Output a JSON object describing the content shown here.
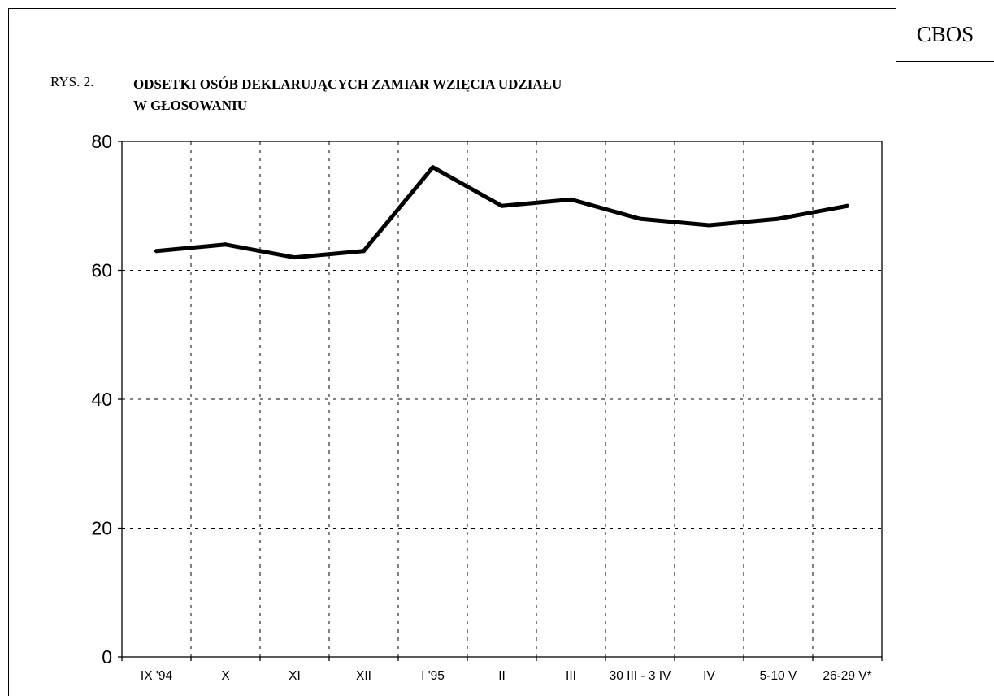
{
  "header": {
    "brand": "CBOS",
    "figure_label": "RYS. 2.",
    "title_lines": [
      "ODSETKI OSÓB DEKLARUJĄCYCH ZAMIAR WZIĘCIA UDZIAŁU",
      "W GŁOSOWANIU"
    ]
  },
  "chart_data": {
    "type": "line",
    "title": "ODSETKI OSÓB DEKLARUJĄCYCH ZAMIAR WZIĘCIA UDZIAŁU W GŁOSOWANIU",
    "categories": [
      "IX '94",
      "X",
      "XI",
      "XII",
      "I '95",
      "II",
      "III",
      "30 III - 3 IV",
      "IV",
      "5-10 V",
      "26-29 V*"
    ],
    "series": [
      {
        "values": [
          63,
          64,
          62,
          63,
          76,
          70,
          71,
          68,
          67,
          68,
          70
        ]
      }
    ],
    "ylim": [
      0,
      80
    ],
    "yticks": [
      0,
      20,
      40,
      60,
      80
    ],
    "xlabel": "",
    "ylabel": "",
    "grid": true,
    "line_color": "#000000"
  }
}
